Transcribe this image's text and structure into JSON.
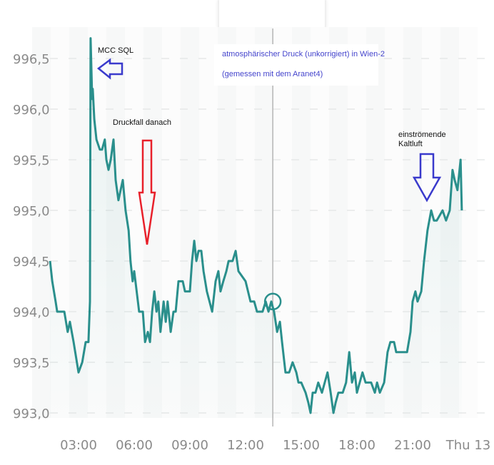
{
  "chart_data": {
    "type": "line",
    "title": "",
    "xlabel": "",
    "ylabel": "",
    "ylim": [
      993.0,
      996.7
    ],
    "yticks": [
      "993,0",
      "993,5",
      "994,0",
      "994,5",
      "995,0",
      "995,5",
      "996,0",
      "996,5"
    ],
    "ytick_values": [
      993.0,
      993.5,
      994.0,
      994.5,
      995.0,
      995.5,
      996.0,
      996.5
    ],
    "xticks": [
      "03:00",
      "06:00",
      "09:00",
      "12:00",
      "15:00",
      "18:00",
      "21:00",
      "Thu 13"
    ],
    "xtick_values": [
      "03:00",
      "06:00",
      "09:00",
      "12:00",
      "15:00",
      "18:00",
      "21:00",
      "24:00"
    ],
    "grid": "horizontal dashed",
    "line_color": "#2a8f8c",
    "cursor_time": "13:28",
    "cursor_value": 994.1,
    "series": [
      {
        "points": [
          [
            "01:28",
            994.5
          ],
          [
            "01:35",
            994.3
          ],
          [
            "01:46",
            994.1
          ],
          [
            "01:51",
            994.0
          ],
          [
            "02:14",
            994.0
          ],
          [
            "02:25",
            993.8
          ],
          [
            "02:32",
            993.9
          ],
          [
            "02:44",
            993.7
          ],
          [
            "03:00",
            993.4
          ],
          [
            "03:12",
            993.5
          ],
          [
            "03:23",
            993.7
          ],
          [
            "03:32",
            993.7
          ],
          [
            "03:37",
            994.1
          ],
          [
            "03:39",
            996.7
          ],
          [
            "03:44",
            996.1
          ],
          [
            "03:46",
            996.2
          ],
          [
            "03:51",
            995.9
          ],
          [
            "03:58",
            995.7
          ],
          [
            "04:09",
            995.6
          ],
          [
            "04:16",
            995.6
          ],
          [
            "04:25",
            995.7
          ],
          [
            "04:30",
            995.5
          ],
          [
            "04:37",
            995.4
          ],
          [
            "04:44",
            995.5
          ],
          [
            "04:53",
            995.7
          ],
          [
            "05:00",
            995.3
          ],
          [
            "05:09",
            995.1
          ],
          [
            "05:23",
            995.3
          ],
          [
            "05:32",
            995.0
          ],
          [
            "05:42",
            994.8
          ],
          [
            "05:48",
            994.5
          ],
          [
            "05:55",
            994.3
          ],
          [
            "06:00",
            994.4
          ],
          [
            "06:16",
            994.0
          ],
          [
            "06:28",
            994.0
          ],
          [
            "06:35",
            993.7
          ],
          [
            "06:44",
            993.8
          ],
          [
            "06:51",
            993.7
          ],
          [
            "06:58",
            994.0
          ],
          [
            "07:05",
            994.2
          ],
          [
            "07:12",
            994.0
          ],
          [
            "07:18",
            994.1
          ],
          [
            "07:25",
            993.8
          ],
          [
            "07:35",
            994.1
          ],
          [
            "07:42",
            993.9
          ],
          [
            "07:48",
            994.1
          ],
          [
            "07:58",
            993.8
          ],
          [
            "08:07",
            994.0
          ],
          [
            "08:14",
            994.0
          ],
          [
            "08:23",
            994.3
          ],
          [
            "08:37",
            994.3
          ],
          [
            "08:44",
            994.2
          ],
          [
            "09:00",
            994.2
          ],
          [
            "09:07",
            994.5
          ],
          [
            "09:14",
            994.7
          ],
          [
            "09:21",
            994.5
          ],
          [
            "09:28",
            994.6
          ],
          [
            "09:37",
            994.6
          ],
          [
            "09:44",
            994.4
          ],
          [
            "09:55",
            994.2
          ],
          [
            "10:12",
            994.0
          ],
          [
            "10:23",
            994.3
          ],
          [
            "10:32",
            994.4
          ],
          [
            "10:39",
            994.2
          ],
          [
            "10:48",
            994.3
          ],
          [
            "10:58",
            994.4
          ],
          [
            "11:05",
            994.5
          ],
          [
            "11:18",
            994.5
          ],
          [
            "11:28",
            994.6
          ],
          [
            "11:37",
            994.4
          ],
          [
            "12:00",
            994.3
          ],
          [
            "12:16",
            994.1
          ],
          [
            "12:28",
            994.1
          ],
          [
            "12:37",
            994.0
          ],
          [
            "12:44",
            994.0
          ],
          [
            "12:55",
            994.0
          ],
          [
            "13:05",
            994.1
          ],
          [
            "13:14",
            994.0
          ],
          [
            "13:23",
            994.1
          ],
          [
            "13:32",
            994.0
          ],
          [
            "13:42",
            993.8
          ],
          [
            "13:51",
            993.9
          ],
          [
            "13:58",
            993.7
          ],
          [
            "14:09",
            993.4
          ],
          [
            "14:21",
            993.4
          ],
          [
            "14:32",
            993.5
          ],
          [
            "14:44",
            993.4
          ],
          [
            "14:51",
            993.3
          ],
          [
            "15:00",
            993.3
          ],
          [
            "15:14",
            993.2
          ],
          [
            "15:23",
            993.1
          ],
          [
            "15:30",
            993.0
          ],
          [
            "15:37",
            993.2
          ],
          [
            "15:46",
            993.2
          ],
          [
            "15:55",
            993.3
          ],
          [
            "16:07",
            993.2
          ],
          [
            "16:16",
            993.3
          ],
          [
            "16:25",
            993.4
          ],
          [
            "16:35",
            993.2
          ],
          [
            "16:44",
            993.0
          ],
          [
            "16:51",
            993.1
          ],
          [
            "17:00",
            993.2
          ],
          [
            "17:14",
            993.2
          ],
          [
            "17:25",
            993.3
          ],
          [
            "17:35",
            993.6
          ],
          [
            "17:44",
            993.3
          ],
          [
            "17:53",
            993.4
          ],
          [
            "18:00",
            993.2
          ],
          [
            "18:09",
            993.3
          ],
          [
            "18:18",
            993.4
          ],
          [
            "18:28",
            993.3
          ],
          [
            "18:46",
            993.3
          ],
          [
            "18:58",
            993.2
          ],
          [
            "19:05",
            993.3
          ],
          [
            "19:14",
            993.2
          ],
          [
            "19:28",
            993.3
          ],
          [
            "19:39",
            993.6
          ],
          [
            "19:48",
            993.7
          ],
          [
            "20:00",
            993.7
          ],
          [
            "20:07",
            993.6
          ],
          [
            "20:42",
            993.6
          ],
          [
            "20:53",
            993.8
          ],
          [
            "21:00",
            994.1
          ],
          [
            "21:09",
            994.2
          ],
          [
            "21:16",
            994.1
          ],
          [
            "21:28",
            994.2
          ],
          [
            "21:37",
            994.5
          ],
          [
            "21:48",
            994.8
          ],
          [
            "22:00",
            995.0
          ],
          [
            "22:09",
            994.9
          ],
          [
            "22:18",
            994.9
          ],
          [
            "22:37",
            995.0
          ],
          [
            "22:48",
            994.9
          ],
          [
            "23:00",
            995.0
          ],
          [
            "23:09",
            995.4
          ],
          [
            "23:16",
            995.3
          ],
          [
            "23:25",
            995.2
          ],
          [
            "23:35",
            995.5
          ],
          [
            "23:39",
            995.0
          ]
        ]
      }
    ],
    "annotations": {
      "note_line1": "atmosphärischer Druck (unkorrigiert) in Wien-2",
      "note_line2": "(gemessen mit dem Aranet4)",
      "note_color": "#4444cc",
      "mcc": "MCC SQL",
      "mcc_arrow_color": "#3a3acc",
      "drop": "Druckfall danach",
      "drop_arrow_color": "#e8202a",
      "cold_line1": "einströmende",
      "cold_line2": "Kaltluft",
      "cold_arrow_color": "#3a3acc"
    }
  }
}
